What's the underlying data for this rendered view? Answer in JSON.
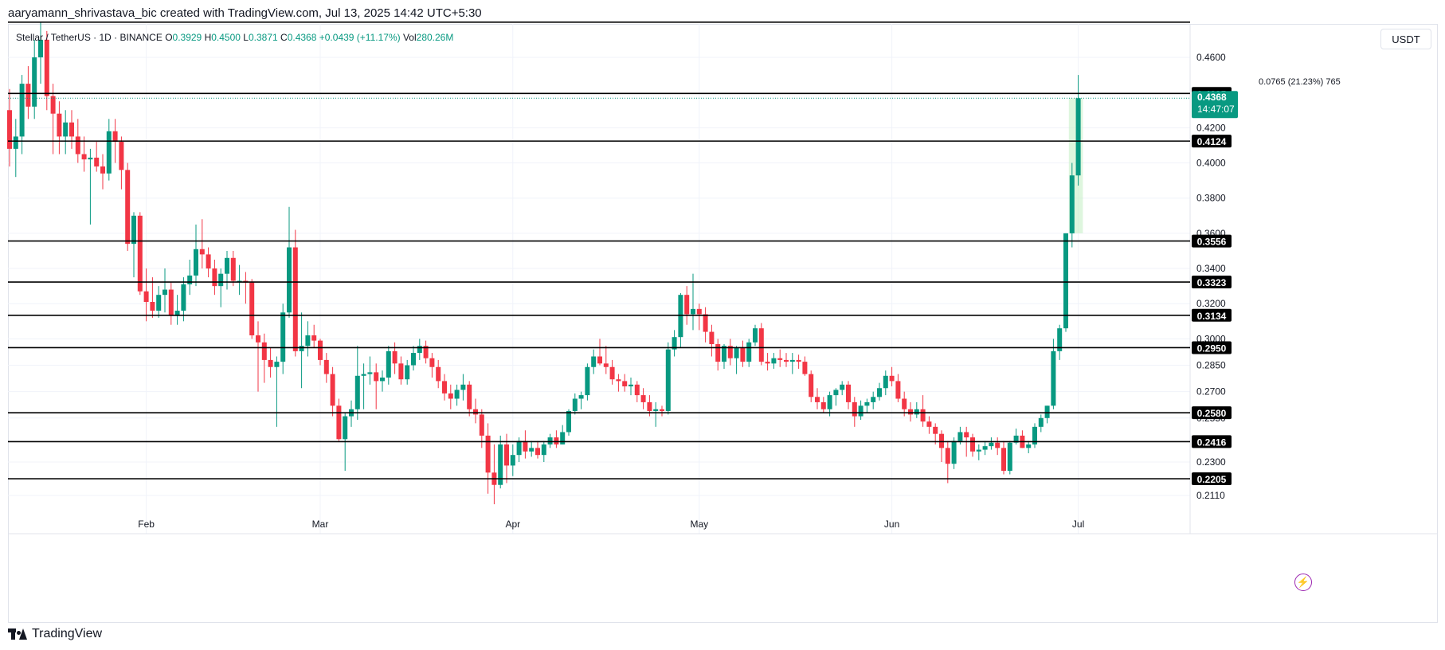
{
  "caption": "aaryamann_shrivastava_bic created with TradingView.com, Jul 13, 2025 14:42 UTC+5:30",
  "symbol": {
    "name": "Stellar / TetherUS · 1D · BINANCE",
    "open_label": "O",
    "open": "0.3929",
    "high_label": "H",
    "high": "0.4500",
    "low_label": "L",
    "low": "0.3871",
    "close_label": "C",
    "close": "0.4368",
    "change": "+0.0439 (+11.17%)",
    "volume_label": "Vol",
    "volume": "280.26M"
  },
  "currency_label": "USDT",
  "measure_label": "0.0765 (21.23%) 765",
  "current_price": {
    "price": "0.4368",
    "countdown": "14:47:07"
  },
  "brand": "TradingView",
  "colors": {
    "up": "#089981",
    "down": "#f23645",
    "level": "#000000",
    "grid": "#f0f3fa",
    "badge_up": "#089981",
    "badge_level": "#000000",
    "measure_fill": "#c8f0c8",
    "bolt": "#9c27b0"
  },
  "chart_data": {
    "type": "candlestick",
    "interval": "1D",
    "xlabels": [
      {
        "label": "Feb",
        "index": 22
      },
      {
        "label": "Mar",
        "index": 50
      },
      {
        "label": "Apr",
        "index": 81
      },
      {
        "label": "May",
        "index": 111
      },
      {
        "label": "Jun",
        "index": 142
      },
      {
        "label": "Jul",
        "index": 172
      }
    ],
    "y_ticks": [
      "0.4600",
      "0.4200",
      "0.4000",
      "0.3800",
      "0.3600",
      "0.3400",
      "0.3200",
      "0.3000",
      "0.2850",
      "0.2700",
      "0.2550",
      "0.2300",
      "0.2110"
    ],
    "levels": [
      "0.4395",
      "0.4124",
      "0.3556",
      "0.3323",
      "0.3134",
      "0.2950",
      "0.2580",
      "0.2416",
      "0.2205"
    ],
    "top_line": "0.4800",
    "grid": true,
    "candles": [
      [
        0.43,
        0.442,
        0.398,
        0.408
      ],
      [
        0.408,
        0.425,
        0.392,
        0.415
      ],
      [
        0.415,
        0.45,
        0.405,
        0.445
      ],
      [
        0.445,
        0.455,
        0.425,
        0.432
      ],
      [
        0.432,
        0.47,
        0.425,
        0.46
      ],
      [
        0.46,
        0.48,
        0.445,
        0.47
      ],
      [
        0.47,
        0.475,
        0.43,
        0.438
      ],
      [
        0.438,
        0.445,
        0.405,
        0.428
      ],
      [
        0.428,
        0.435,
        0.405,
        0.415
      ],
      [
        0.415,
        0.43,
        0.405,
        0.423
      ],
      [
        0.423,
        0.43,
        0.408,
        0.415
      ],
      [
        0.415,
        0.425,
        0.4,
        0.405
      ],
      [
        0.405,
        0.415,
        0.395,
        0.402
      ],
      [
        0.402,
        0.408,
        0.365,
        0.403
      ],
      [
        0.403,
        0.412,
        0.395,
        0.398
      ],
      [
        0.398,
        0.405,
        0.385,
        0.394
      ],
      [
        0.394,
        0.425,
        0.39,
        0.418
      ],
      [
        0.418,
        0.425,
        0.4,
        0.412
      ],
      [
        0.412,
        0.415,
        0.385,
        0.396
      ],
      [
        0.396,
        0.4,
        0.35,
        0.354
      ],
      [
        0.354,
        0.372,
        0.335,
        0.37
      ],
      [
        0.37,
        0.372,
        0.325,
        0.327
      ],
      [
        0.327,
        0.34,
        0.31,
        0.321
      ],
      [
        0.321,
        0.335,
        0.312,
        0.316
      ],
      [
        0.316,
        0.33,
        0.312,
        0.325
      ],
      [
        0.325,
        0.34,
        0.315,
        0.328
      ],
      [
        0.328,
        0.332,
        0.308,
        0.313
      ],
      [
        0.313,
        0.325,
        0.308,
        0.316
      ],
      [
        0.316,
        0.335,
        0.31,
        0.331
      ],
      [
        0.331,
        0.345,
        0.325,
        0.336
      ],
      [
        0.336,
        0.365,
        0.33,
        0.351
      ],
      [
        0.351,
        0.368,
        0.34,
        0.348
      ],
      [
        0.348,
        0.352,
        0.335,
        0.34
      ],
      [
        0.34,
        0.345,
        0.325,
        0.33
      ],
      [
        0.33,
        0.34,
        0.318,
        0.337
      ],
      [
        0.337,
        0.35,
        0.328,
        0.346
      ],
      [
        0.346,
        0.35,
        0.33,
        0.333
      ],
      [
        0.333,
        0.342,
        0.325,
        0.333
      ],
      [
        0.333,
        0.338,
        0.32,
        0.332
      ],
      [
        0.332,
        0.334,
        0.3,
        0.302
      ],
      [
        0.302,
        0.31,
        0.27,
        0.298
      ],
      [
        0.298,
        0.303,
        0.275,
        0.288
      ],
      [
        0.288,
        0.295,
        0.278,
        0.284
      ],
      [
        0.284,
        0.29,
        0.25,
        0.287
      ],
      [
        0.287,
        0.32,
        0.28,
        0.315
      ],
      [
        0.315,
        0.375,
        0.312,
        0.352
      ],
      [
        0.352,
        0.362,
        0.29,
        0.293
      ],
      [
        0.293,
        0.315,
        0.272,
        0.296
      ],
      [
        0.296,
        0.31,
        0.29,
        0.302
      ],
      [
        0.302,
        0.308,
        0.295,
        0.299
      ],
      [
        0.299,
        0.3,
        0.285,
        0.288
      ],
      [
        0.288,
        0.292,
        0.275,
        0.28
      ],
      [
        0.28,
        0.284,
        0.256,
        0.262
      ],
      [
        0.262,
        0.266,
        0.242,
        0.243
      ],
      [
        0.243,
        0.258,
        0.225,
        0.256
      ],
      [
        0.256,
        0.265,
        0.25,
        0.26
      ],
      [
        0.26,
        0.296,
        0.254,
        0.279
      ],
      [
        0.279,
        0.286,
        0.26,
        0.28
      ],
      [
        0.28,
        0.29,
        0.274,
        0.281
      ],
      [
        0.281,
        0.286,
        0.26,
        0.276
      ],
      [
        0.276,
        0.282,
        0.27,
        0.278
      ],
      [
        0.278,
        0.296,
        0.274,
        0.293
      ],
      [
        0.293,
        0.298,
        0.28,
        0.286
      ],
      [
        0.286,
        0.29,
        0.274,
        0.277
      ],
      [
        0.277,
        0.288,
        0.274,
        0.285
      ],
      [
        0.285,
        0.296,
        0.282,
        0.292
      ],
      [
        0.292,
        0.3,
        0.288,
        0.296
      ],
      [
        0.296,
        0.299,
        0.286,
        0.289
      ],
      [
        0.289,
        0.292,
        0.278,
        0.284
      ],
      [
        0.284,
        0.288,
        0.272,
        0.276
      ],
      [
        0.276,
        0.28,
        0.265,
        0.269
      ],
      [
        0.269,
        0.274,
        0.26,
        0.266
      ],
      [
        0.266,
        0.274,
        0.262,
        0.271
      ],
      [
        0.271,
        0.28,
        0.265,
        0.274
      ],
      [
        0.274,
        0.276,
        0.256,
        0.26
      ],
      [
        0.26,
        0.266,
        0.252,
        0.257
      ],
      [
        0.257,
        0.26,
        0.238,
        0.245
      ],
      [
        0.245,
        0.252,
        0.212,
        0.224
      ],
      [
        0.224,
        0.24,
        0.206,
        0.217
      ],
      [
        0.217,
        0.245,
        0.215,
        0.24
      ],
      [
        0.24,
        0.246,
        0.218,
        0.228
      ],
      [
        0.228,
        0.24,
        0.222,
        0.234
      ],
      [
        0.234,
        0.244,
        0.23,
        0.242
      ],
      [
        0.242,
        0.248,
        0.232,
        0.236
      ],
      [
        0.236,
        0.242,
        0.233,
        0.238
      ],
      [
        0.238,
        0.242,
        0.232,
        0.234
      ],
      [
        0.234,
        0.242,
        0.23,
        0.24
      ],
      [
        0.24,
        0.246,
        0.238,
        0.244
      ],
      [
        0.244,
        0.248,
        0.238,
        0.24
      ],
      [
        0.24,
        0.251,
        0.24,
        0.247
      ],
      [
        0.247,
        0.26,
        0.245,
        0.259
      ],
      [
        0.259,
        0.269,
        0.257,
        0.266
      ],
      [
        0.266,
        0.27,
        0.26,
        0.268
      ],
      [
        0.268,
        0.286,
        0.265,
        0.284
      ],
      [
        0.284,
        0.294,
        0.28,
        0.29
      ],
      [
        0.29,
        0.3,
        0.285,
        0.286
      ],
      [
        0.286,
        0.296,
        0.28,
        0.284
      ],
      [
        0.284,
        0.288,
        0.274,
        0.277
      ],
      [
        0.277,
        0.28,
        0.27,
        0.276
      ],
      [
        0.276,
        0.28,
        0.27,
        0.273
      ],
      [
        0.273,
        0.278,
        0.268,
        0.274
      ],
      [
        0.274,
        0.276,
        0.264,
        0.268
      ],
      [
        0.268,
        0.272,
        0.26,
        0.264
      ],
      [
        0.264,
        0.268,
        0.256,
        0.259
      ],
      [
        0.259,
        0.264,
        0.25,
        0.26
      ],
      [
        0.26,
        0.262,
        0.256,
        0.259
      ],
      [
        0.259,
        0.298,
        0.257,
        0.294
      ],
      [
        0.294,
        0.305,
        0.29,
        0.301
      ],
      [
        0.301,
        0.326,
        0.295,
        0.325
      ],
      [
        0.325,
        0.33,
        0.308,
        0.314
      ],
      [
        0.314,
        0.337,
        0.305,
        0.317
      ],
      [
        0.317,
        0.32,
        0.305,
        0.314
      ],
      [
        0.314,
        0.318,
        0.298,
        0.304
      ],
      [
        0.304,
        0.308,
        0.29,
        0.297
      ],
      [
        0.297,
        0.3,
        0.282,
        0.287
      ],
      [
        0.287,
        0.297,
        0.283,
        0.296
      ],
      [
        0.296,
        0.3,
        0.285,
        0.289
      ],
      [
        0.289,
        0.296,
        0.28,
        0.295
      ],
      [
        0.295,
        0.299,
        0.284,
        0.287
      ],
      [
        0.287,
        0.3,
        0.284,
        0.298
      ],
      [
        0.298,
        0.308,
        0.296,
        0.306
      ],
      [
        0.306,
        0.309,
        0.285,
        0.287
      ],
      [
        0.287,
        0.292,
        0.282,
        0.286
      ],
      [
        0.286,
        0.292,
        0.283,
        0.289
      ],
      [
        0.289,
        0.294,
        0.284,
        0.288
      ],
      [
        0.288,
        0.292,
        0.284,
        0.287
      ],
      [
        0.287,
        0.292,
        0.28,
        0.288
      ],
      [
        0.288,
        0.291,
        0.283,
        0.287
      ],
      [
        0.287,
        0.29,
        0.279,
        0.28
      ],
      [
        0.28,
        0.282,
        0.264,
        0.267
      ],
      [
        0.267,
        0.272,
        0.26,
        0.264
      ],
      [
        0.264,
        0.267,
        0.258,
        0.26
      ],
      [
        0.26,
        0.27,
        0.256,
        0.268
      ],
      [
        0.268,
        0.272,
        0.262,
        0.271
      ],
      [
        0.271,
        0.276,
        0.268,
        0.274
      ],
      [
        0.274,
        0.276,
        0.26,
        0.264
      ],
      [
        0.264,
        0.267,
        0.25,
        0.256
      ],
      [
        0.256,
        0.265,
        0.254,
        0.262
      ],
      [
        0.262,
        0.266,
        0.258,
        0.264
      ],
      [
        0.264,
        0.27,
        0.26,
        0.267
      ],
      [
        0.267,
        0.275,
        0.265,
        0.272
      ],
      [
        0.272,
        0.282,
        0.268,
        0.279
      ],
      [
        0.279,
        0.284,
        0.273,
        0.276
      ],
      [
        0.276,
        0.28,
        0.264,
        0.266
      ],
      [
        0.266,
        0.27,
        0.256,
        0.26
      ],
      [
        0.26,
        0.264,
        0.253,
        0.257
      ],
      [
        0.257,
        0.264,
        0.255,
        0.26
      ],
      [
        0.26,
        0.268,
        0.25,
        0.253
      ],
      [
        0.253,
        0.256,
        0.246,
        0.25
      ],
      [
        0.25,
        0.252,
        0.24,
        0.246
      ],
      [
        0.246,
        0.248,
        0.23,
        0.238
      ],
      [
        0.238,
        0.242,
        0.218,
        0.229
      ],
      [
        0.229,
        0.244,
        0.226,
        0.242
      ],
      [
        0.242,
        0.25,
        0.24,
        0.247
      ],
      [
        0.247,
        0.25,
        0.233,
        0.244
      ],
      [
        0.244,
        0.246,
        0.233,
        0.236
      ],
      [
        0.236,
        0.24,
        0.231,
        0.237
      ],
      [
        0.237,
        0.242,
        0.234,
        0.239
      ],
      [
        0.239,
        0.244,
        0.237,
        0.241
      ],
      [
        0.241,
        0.244,
        0.234,
        0.238
      ],
      [
        0.238,
        0.242,
        0.223,
        0.225
      ],
      [
        0.225,
        0.242,
        0.223,
        0.241
      ],
      [
        0.241,
        0.249,
        0.24,
        0.245
      ],
      [
        0.245,
        0.248,
        0.238,
        0.238
      ],
      [
        0.238,
        0.242,
        0.235,
        0.24
      ],
      [
        0.24,
        0.252,
        0.238,
        0.25
      ],
      [
        0.25,
        0.257,
        0.247,
        0.255
      ],
      [
        0.255,
        0.262,
        0.252,
        0.262
      ],
      [
        0.262,
        0.3,
        0.26,
        0.293
      ],
      [
        0.293,
        0.308,
        0.288,
        0.306
      ],
      [
        0.306,
        0.36,
        0.304,
        0.36
      ],
      [
        0.36,
        0.4,
        0.352,
        0.3929
      ],
      [
        0.3929,
        0.45,
        0.3871,
        0.4368
      ]
    ]
  }
}
